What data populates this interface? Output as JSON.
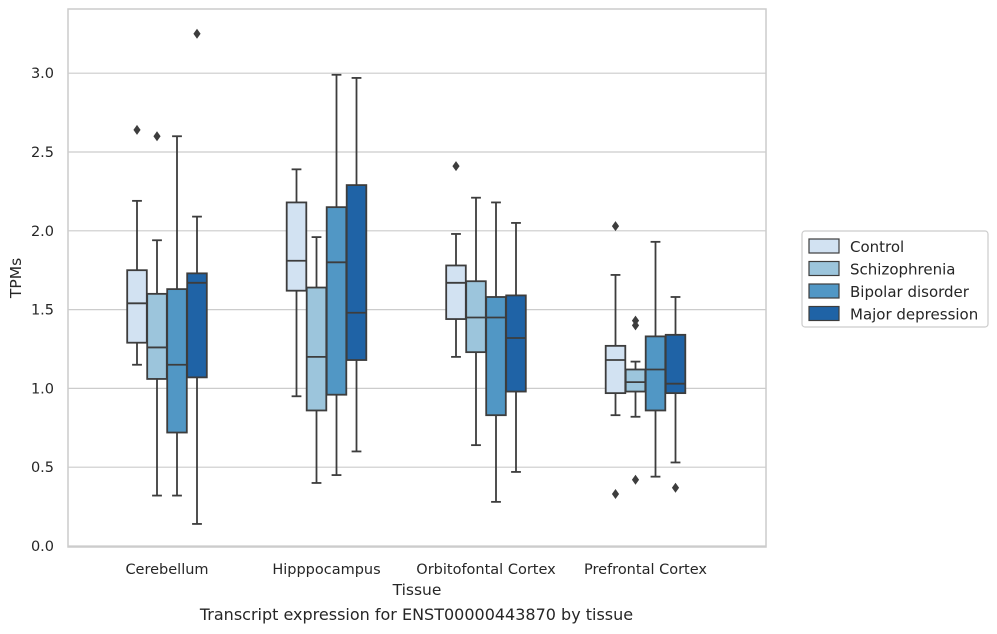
{
  "caption": "Transcript expression for ENST00000443870 by tissue",
  "chart_data": {
    "type": "box",
    "xlabel": "Tissue",
    "ylabel": "TPMs",
    "ylim": [
      0,
      3.25
    ],
    "yticks": [
      0.0,
      0.5,
      1.0,
      1.5,
      2.0,
      2.5,
      3.0
    ],
    "ytick_labels": [
      "0.0",
      "0.5",
      "1.0",
      "1.5",
      "2.0",
      "2.5",
      "3.0"
    ],
    "grid": "horizontal",
    "legend_position": "right, outside plot",
    "categories": [
      "Cerebellum",
      "Hipppocampus",
      "Orbitofontal Cortex",
      "Prefrontal Cortex"
    ],
    "series": [
      {
        "name": "Control",
        "color": "#d2e2f2",
        "boxes": [
          {
            "whislo": 1.15,
            "q1": 1.29,
            "med": 1.54,
            "q3": 1.75,
            "whishi": 2.19,
            "fliers": [
              2.64
            ]
          },
          {
            "whislo": 0.95,
            "q1": 1.62,
            "med": 1.81,
            "q3": 2.18,
            "whishi": 2.39,
            "fliers": []
          },
          {
            "whislo": 1.2,
            "q1": 1.44,
            "med": 1.67,
            "q3": 1.78,
            "whishi": 1.98,
            "fliers": [
              2.41
            ]
          },
          {
            "whislo": 0.83,
            "q1": 0.97,
            "med": 1.18,
            "q3": 1.27,
            "whishi": 1.72,
            "fliers": [
              2.03,
              0.33
            ]
          }
        ]
      },
      {
        "name": "Schizophrenia",
        "color": "#9cc5dc",
        "boxes": [
          {
            "whislo": 0.32,
            "q1": 1.06,
            "med": 1.26,
            "q3": 1.6,
            "whishi": 1.94,
            "fliers": [
              2.6
            ]
          },
          {
            "whislo": 0.4,
            "q1": 0.86,
            "med": 1.2,
            "q3": 1.64,
            "whishi": 1.96,
            "fliers": []
          },
          {
            "whislo": 0.64,
            "q1": 1.23,
            "med": 1.45,
            "q3": 1.68,
            "whishi": 2.21,
            "fliers": []
          },
          {
            "whislo": 0.82,
            "q1": 0.98,
            "med": 1.04,
            "q3": 1.12,
            "whishi": 1.17,
            "fliers": [
              1.43,
              1.4,
              0.42
            ]
          }
        ]
      },
      {
        "name": "Bipolar disorder",
        "color": "#5197c5",
        "boxes": [
          {
            "whislo": 0.32,
            "q1": 0.72,
            "med": 1.15,
            "q3": 1.63,
            "whishi": 2.6,
            "fliers": []
          },
          {
            "whislo": 0.45,
            "q1": 0.96,
            "med": 1.8,
            "q3": 2.15,
            "whishi": 2.99,
            "fliers": []
          },
          {
            "whislo": 0.28,
            "q1": 0.83,
            "med": 1.45,
            "q3": 1.58,
            "whishi": 2.18,
            "fliers": []
          },
          {
            "whislo": 0.44,
            "q1": 0.86,
            "med": 1.12,
            "q3": 1.33,
            "whishi": 1.93,
            "fliers": []
          }
        ]
      },
      {
        "name": "Major depression",
        "color": "#1f63a6",
        "boxes": [
          {
            "whislo": 0.14,
            "q1": 1.07,
            "med": 1.67,
            "q3": 1.73,
            "whishi": 2.09,
            "fliers": [
              3.25
            ]
          },
          {
            "whislo": 0.6,
            "q1": 1.18,
            "med": 1.48,
            "q3": 2.29,
            "whishi": 2.97,
            "fliers": []
          },
          {
            "whislo": 0.47,
            "q1": 0.98,
            "med": 1.32,
            "q3": 1.59,
            "whishi": 2.05,
            "fliers": []
          },
          {
            "whislo": 0.53,
            "q1": 0.97,
            "med": 1.03,
            "q3": 1.34,
            "whishi": 1.58,
            "fliers": [
              0.37
            ]
          }
        ]
      }
    ]
  }
}
